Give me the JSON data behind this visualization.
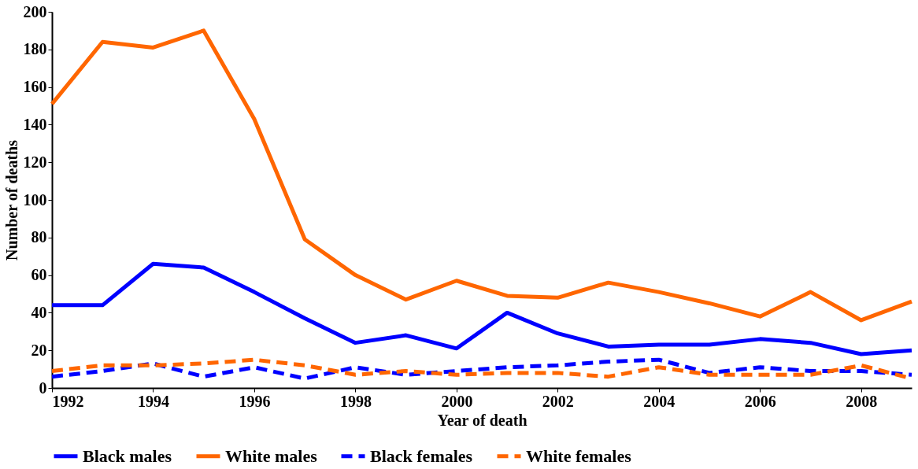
{
  "chart_data": {
    "type": "line",
    "xlabel": "Year of death",
    "ylabel": "Number of deaths",
    "x": [
      1992,
      1993,
      1994,
      1995,
      1996,
      1997,
      1998,
      1999,
      2000,
      2001,
      2002,
      2003,
      2004,
      2005,
      2006,
      2007,
      2008,
      2009
    ],
    "xlim": [
      1992,
      2009
    ],
    "xticks": [
      1992,
      1994,
      1996,
      1998,
      2000,
      2002,
      2004,
      2006,
      2008
    ],
    "ylim": [
      0,
      200
    ],
    "yticks": [
      0,
      20,
      40,
      60,
      80,
      100,
      120,
      140,
      160,
      180,
      200
    ],
    "grid": false,
    "legend": "bottom",
    "marker": "none",
    "series": [
      {
        "name": "Black males",
        "color": "#0000ff",
        "line_style": "solid",
        "values": [
          44,
          44,
          66,
          64,
          51,
          37,
          24,
          28,
          21,
          40,
          29,
          22,
          23,
          23,
          26,
          24,
          18,
          20
        ]
      },
      {
        "name": "White males",
        "color": "#ff6600",
        "line_style": "solid",
        "values": [
          151,
          184,
          181,
          190,
          143,
          79,
          60,
          47,
          57,
          49,
          48,
          56,
          51,
          45,
          38,
          51,
          36,
          46
        ]
      },
      {
        "name": "Black females",
        "color": "#0000ff",
        "line_style": "dashed",
        "values": [
          6,
          9,
          13,
          6,
          11,
          5,
          11,
          7,
          9,
          11,
          12,
          14,
          15,
          8,
          11,
          9,
          9,
          7
        ]
      },
      {
        "name": "White females",
        "color": "#ff6600",
        "line_style": "dashed",
        "values": [
          9,
          12,
          12,
          13,
          15,
          12,
          7,
          9,
          7,
          8,
          8,
          6,
          11,
          7,
          7,
          7,
          12,
          5
        ]
      }
    ]
  }
}
